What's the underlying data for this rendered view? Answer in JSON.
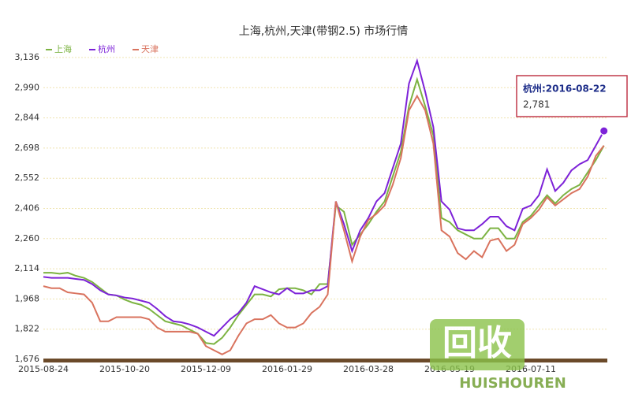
{
  "chart_data": {
    "type": "line",
    "title": "上海,杭州,天津(带钢2.5) 市场行情",
    "categories": [
      "2015-08-24",
      null,
      null,
      null,
      null,
      null,
      null,
      null,
      null,
      null,
      "2015-10-20",
      null,
      null,
      null,
      null,
      null,
      null,
      null,
      null,
      null,
      "2015-12-09",
      null,
      null,
      null,
      null,
      null,
      null,
      null,
      null,
      null,
      "2016-01-29",
      null,
      null,
      null,
      null,
      null,
      null,
      null,
      null,
      null,
      "2016-03-28",
      null,
      null,
      null,
      null,
      null,
      null,
      null,
      null,
      null,
      "2016-05-19",
      null,
      null,
      null,
      null,
      null,
      null,
      null,
      null,
      null,
      "2016-07-11",
      null,
      null,
      null,
      null,
      null,
      null,
      null,
      null,
      null
    ],
    "series": [
      {
        "name": "上海",
        "color": "#7cb342",
        "values": [
          2095,
          2095,
          2090,
          2095,
          2080,
          2070,
          2050,
          2020,
          1990,
          1985,
          1965,
          1950,
          1940,
          1920,
          1890,
          1860,
          1850,
          1840,
          1820,
          1800,
          1755,
          1750,
          1780,
          1830,
          1890,
          1940,
          1990,
          1990,
          1980,
          2015,
          2020,
          2020,
          2010,
          1990,
          2040,
          2040,
          2420,
          2390,
          2230,
          2280,
          2330,
          2390,
          2440,
          2560,
          2680,
          2900,
          3030,
          2900,
          2760,
          2360,
          2340,
          2300,
          2280,
          2260,
          2260,
          2310,
          2310,
          2260,
          2260,
          2340,
          2370,
          2420,
          2470,
          2430,
          2470,
          2500,
          2520,
          2580,
          2640,
          2710
        ]
      },
      {
        "name": "杭州",
        "color": "#7d22d8",
        "values": [
          2075,
          2070,
          2070,
          2070,
          2065,
          2060,
          2040,
          2010,
          1990,
          1985,
          1975,
          1970,
          1960,
          1950,
          1920,
          1885,
          1860,
          1855,
          1845,
          1830,
          1810,
          1790,
          1830,
          1870,
          1900,
          1950,
          2030,
          2015,
          2000,
          1990,
          2020,
          1995,
          1995,
          2010,
          2010,
          2030,
          2440,
          2330,
          2200,
          2300,
          2360,
          2440,
          2480,
          2600,
          2720,
          3010,
          3120,
          2970,
          2800,
          2440,
          2400,
          2310,
          2300,
          2300,
          2330,
          2366,
          2366,
          2320,
          2300,
          2404,
          2420,
          2470,
          2595,
          2490,
          2530,
          2590,
          2620,
          2640,
          2710,
          2781
        ]
      },
      {
        "name": "天津",
        "color": "#d9735e",
        "values": [
          2030,
          2020,
          2020,
          2000,
          1995,
          1990,
          1950,
          1860,
          1860,
          1880,
          1880,
          1880,
          1880,
          1870,
          1830,
          1810,
          1810,
          1810,
          1810,
          1800,
          1740,
          1720,
          1700,
          1720,
          1790,
          1850,
          1870,
          1870,
          1890,
          1850,
          1830,
          1830,
          1850,
          1900,
          1930,
          1990,
          2440,
          2300,
          2150,
          2270,
          2350,
          2380,
          2420,
          2520,
          2650,
          2880,
          2950,
          2880,
          2720,
          2300,
          2270,
          2190,
          2160,
          2200,
          2170,
          2250,
          2260,
          2200,
          2230,
          2330,
          2360,
          2400,
          2460,
          2420,
          2450,
          2480,
          2500,
          2560,
          2660,
          2710
        ]
      }
    ],
    "ylim": [
      1676,
      3136
    ],
    "yticks": [
      {
        "value": 1676,
        "label": "1,676"
      },
      {
        "value": 1822,
        "label": "1,822"
      },
      {
        "value": 1968,
        "label": "1,968"
      },
      {
        "value": 2114,
        "label": "2,114"
      },
      {
        "value": 2260,
        "label": "2,260"
      },
      {
        "value": 2406,
        "label": "2,406"
      },
      {
        "value": 2552,
        "label": "2,552"
      },
      {
        "value": 2698,
        "label": "2,698"
      },
      {
        "value": 2844,
        "label": "2,844"
      },
      {
        "value": 2990,
        "label": "2,990"
      },
      {
        "value": 3136,
        "label": "3,136"
      }
    ],
    "grid": true,
    "legend": "top-left",
    "tooltip": {
      "label": "杭州:2016-08-22",
      "value_label": "2,781",
      "border": "#c0394a"
    }
  },
  "watermark": {
    "mark": "回收",
    "text": "HUISHOUREN"
  }
}
